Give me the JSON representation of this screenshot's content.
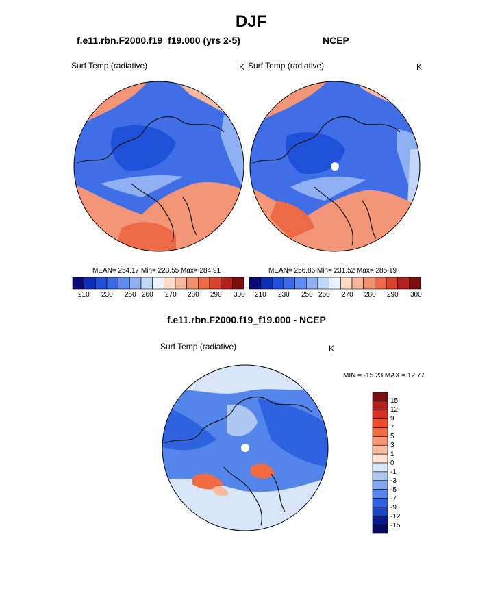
{
  "page_title": "DJF",
  "panels": [
    {
      "title": "f.e11.rbn.F2000.f19_f19.000 (yrs 2-5)",
      "variable": "Surf Temp (radiative)",
      "units": "K",
      "stats": "MEAN= 254.17  Min= 223.55  Max= 284.91"
    },
    {
      "title": "NCEP",
      "variable": "Surf Temp (radiative)",
      "units": "K",
      "stats": "MEAN= 256.86  Min= 231.52  Max= 285.19"
    }
  ],
  "abs_colorbar": {
    "ticks": [
      "210",
      "230",
      "250",
      "260",
      "270",
      "280",
      "290",
      "300"
    ],
    "colors": [
      "#0a0a78",
      "#0d2fb8",
      "#1f50d8",
      "#3a6ae6",
      "#5e8df0",
      "#8fb1f4",
      "#c2d6f7",
      "#ecf2fb",
      "#fcdcc8",
      "#f7b79b",
      "#f2916e",
      "#ec6a46",
      "#d8432a",
      "#b2211a",
      "#7e0c0c"
    ]
  },
  "diff_panel": {
    "title": "f.e11.rbn.F2000.f19_f19.000 - NCEP",
    "variable": "Surf Temp (radiative)",
    "units": "K",
    "stats": "MIN = -15.23 MAX =  12.77",
    "colorbar_labels": [
      "15",
      "12",
      "9",
      "7",
      "5",
      "3",
      "1",
      "0",
      "-1",
      "-3",
      "-5",
      "-7",
      "-9",
      "-12",
      "-15"
    ],
    "colorbar_colors": [
      "#7e0c0c",
      "#b2211a",
      "#d8301e",
      "#ec4b2a",
      "#f26a3f",
      "#f59670",
      "#f8bc9e",
      "#fde2d2",
      "#d9e6f8",
      "#aec8f4",
      "#7fa6ef",
      "#5485ea",
      "#2f62de",
      "#1b45c0",
      "#0a1a8a",
      "#060a60"
    ]
  }
}
